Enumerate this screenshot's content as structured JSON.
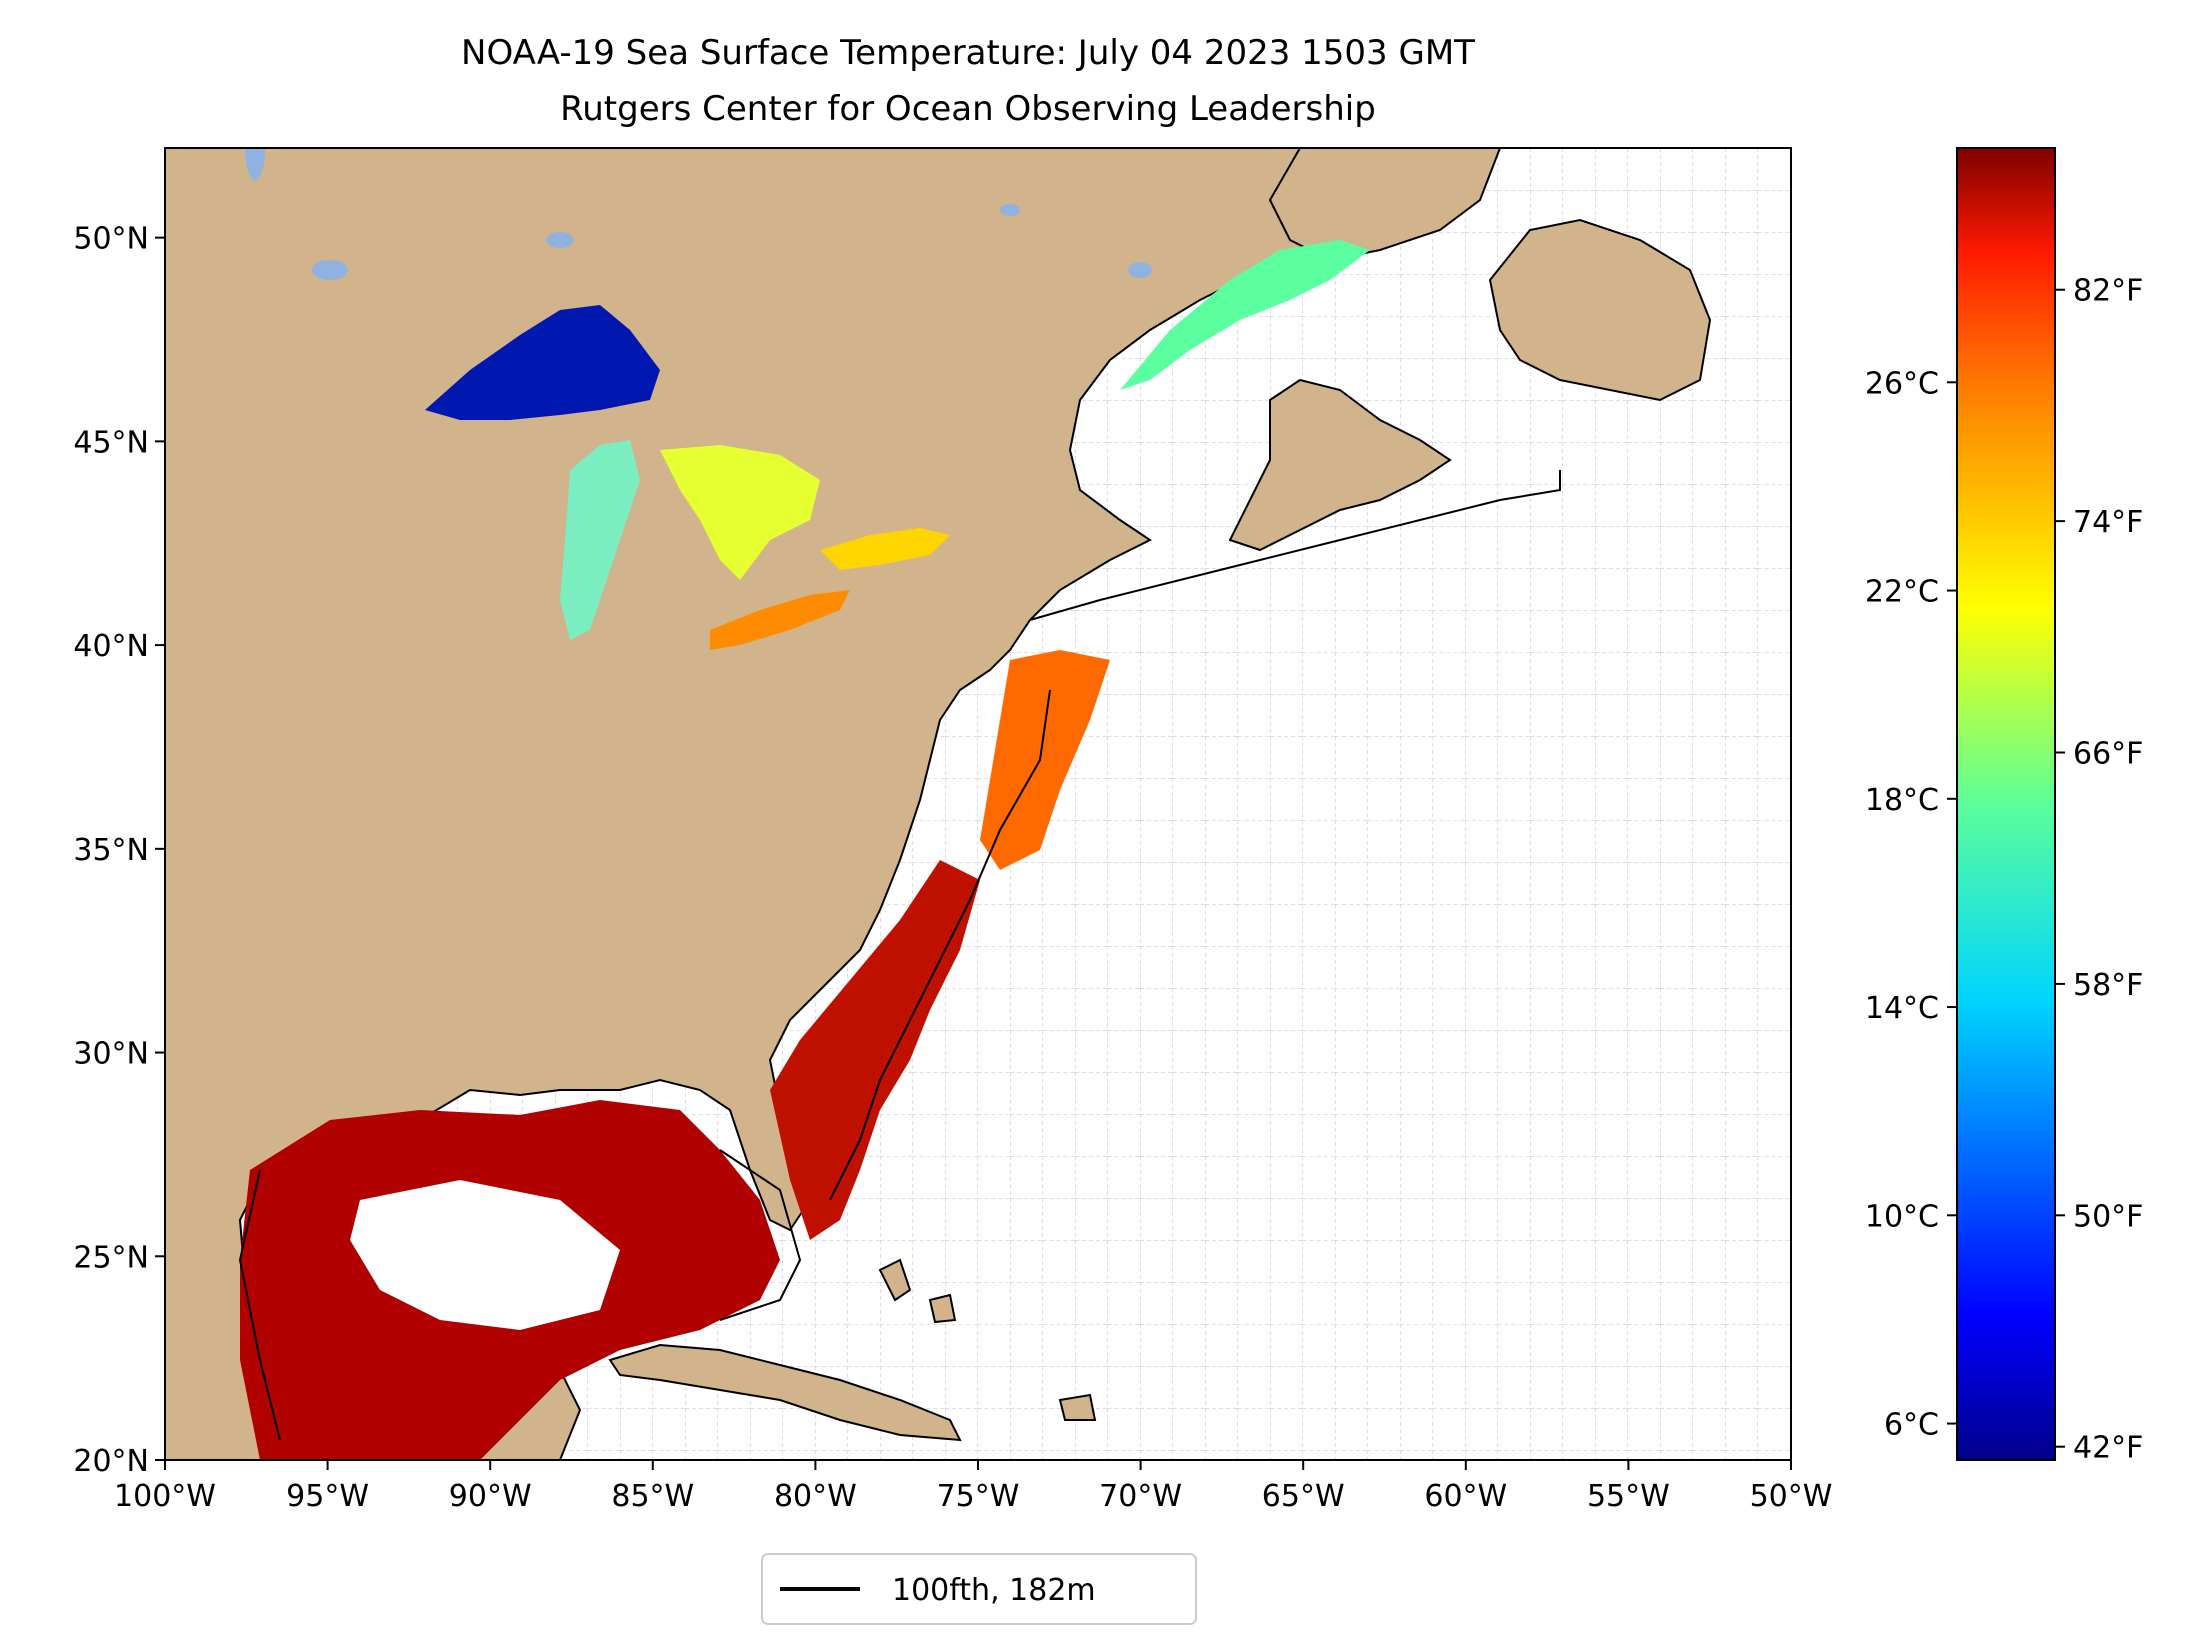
{
  "title": "NOAA-19 Sea Surface Temperature: July 04 2023 1503 GMT",
  "subtitle": "Rutgers Center for Ocean Observing Leadership",
  "x_ticks": [
    "100°W",
    "95°W",
    "90°W",
    "85°W",
    "80°W",
    "75°W",
    "70°W",
    "65°W",
    "60°W",
    "55°W",
    "50°W"
  ],
  "y_ticks": [
    "50°N",
    "45°N",
    "40°N",
    "35°N",
    "30°N",
    "25°N",
    "20°N"
  ],
  "colorbar": {
    "celsius_ticks": [
      "26°C",
      "22°C",
      "18°C",
      "14°C",
      "10°C",
      "6°C"
    ],
    "fahrenheit_ticks": [
      "82°F",
      "74°F",
      "66°F",
      "58°F",
      "50°F",
      "42°F"
    ],
    "celsius_values": [
      26,
      22,
      18,
      14,
      10,
      6
    ],
    "fahrenheit_values": [
      82,
      74,
      66,
      58,
      50,
      42
    ],
    "range_celsius": [
      5.3,
      30.5
    ]
  },
  "legend": {
    "label": "100fth, 182m"
  },
  "map": {
    "lon_range": [
      -100,
      -50
    ],
    "lat_range": [
      20,
      52.2
    ],
    "land_color": "#d2b48c",
    "lake_color": "#8fb2e0",
    "grid": "dashed, every 1 degree"
  },
  "colors": {
    "cold": "#00008b",
    "mid": "#ffff00",
    "warm": "#8b0000"
  }
}
